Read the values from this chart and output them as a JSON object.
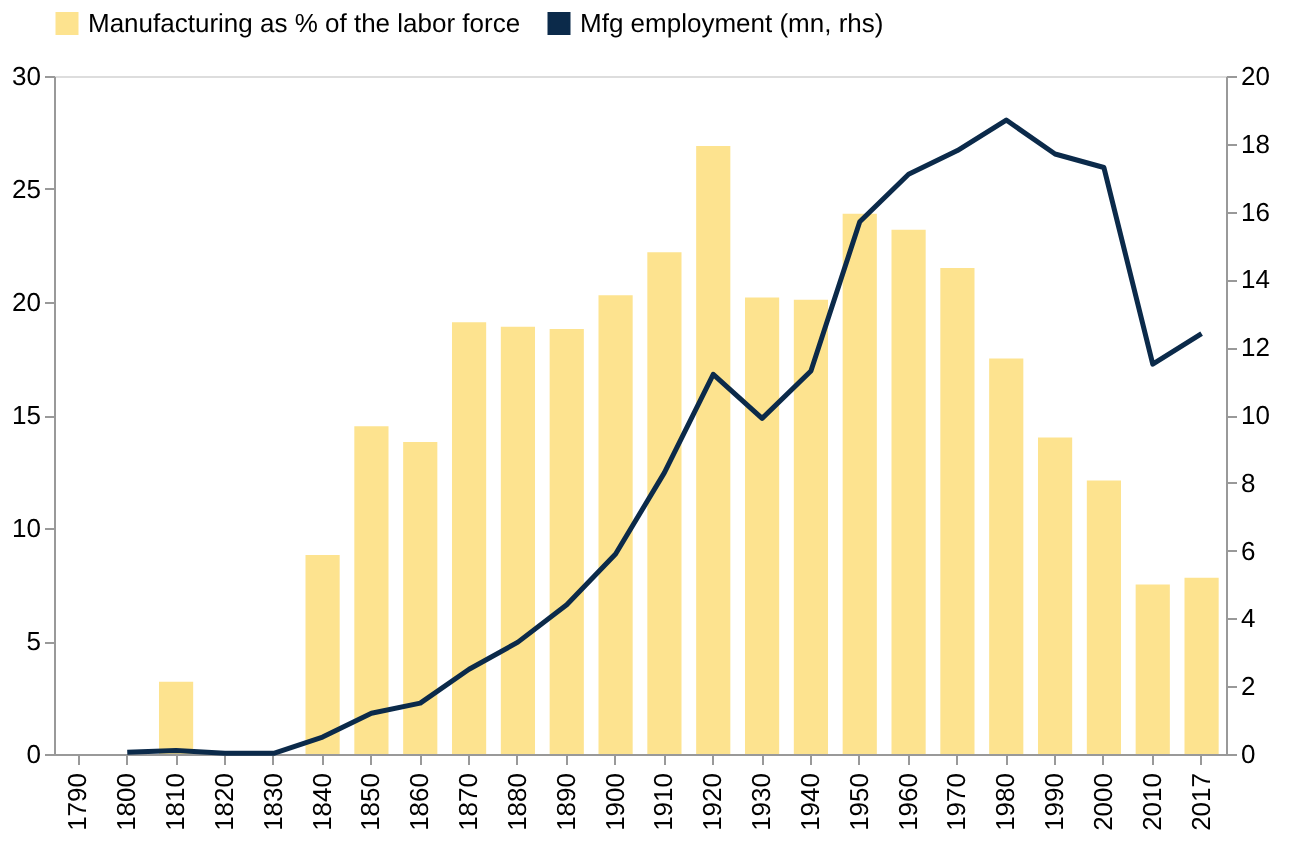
{
  "chart_data": {
    "type": "bar",
    "categories": [
      "1790",
      "1800",
      "1810",
      "1820",
      "1830",
      "1840",
      "1850",
      "1860",
      "1870",
      "1880",
      "1890",
      "1900",
      "1910",
      "1920",
      "1930",
      "1940",
      "1950",
      "1960",
      "1970",
      "1980",
      "1990",
      "2000",
      "2010",
      "2017"
    ],
    "series": [
      {
        "name": "Manufacturing as % of the labor force",
        "color": "#fde38f",
        "values": [
          null,
          null,
          3.2,
          null,
          null,
          8.8,
          14.5,
          13.8,
          19.1,
          18.9,
          18.8,
          20.3,
          22.2,
          26.9,
          20.2,
          20.1,
          23.9,
          23.2,
          21.5,
          17.5,
          14.0,
          12.1,
          7.5,
          7.8
        ]
      },
      {
        "name": "Mfg employment (mn, rhs)",
        "type": "line",
        "axis": "y2",
        "color": "#0b2a4a",
        "values": [
          null,
          0.05,
          0.1,
          0.02,
          0.02,
          0.5,
          1.2,
          1.5,
          2.5,
          3.3,
          4.4,
          5.9,
          8.3,
          11.2,
          9.9,
          11.3,
          15.7,
          17.1,
          17.8,
          18.7,
          17.7,
          17.3,
          11.5,
          12.4
        ]
      }
    ],
    "ylim": [
      0,
      30
    ],
    "yticks": [
      0,
      5,
      10,
      15,
      20,
      25,
      30
    ],
    "y2lim": [
      0,
      20
    ],
    "y2ticks": [
      0,
      2,
      4,
      6,
      8,
      10,
      12,
      14,
      16,
      18,
      20
    ],
    "grid": false,
    "legend": "top"
  }
}
